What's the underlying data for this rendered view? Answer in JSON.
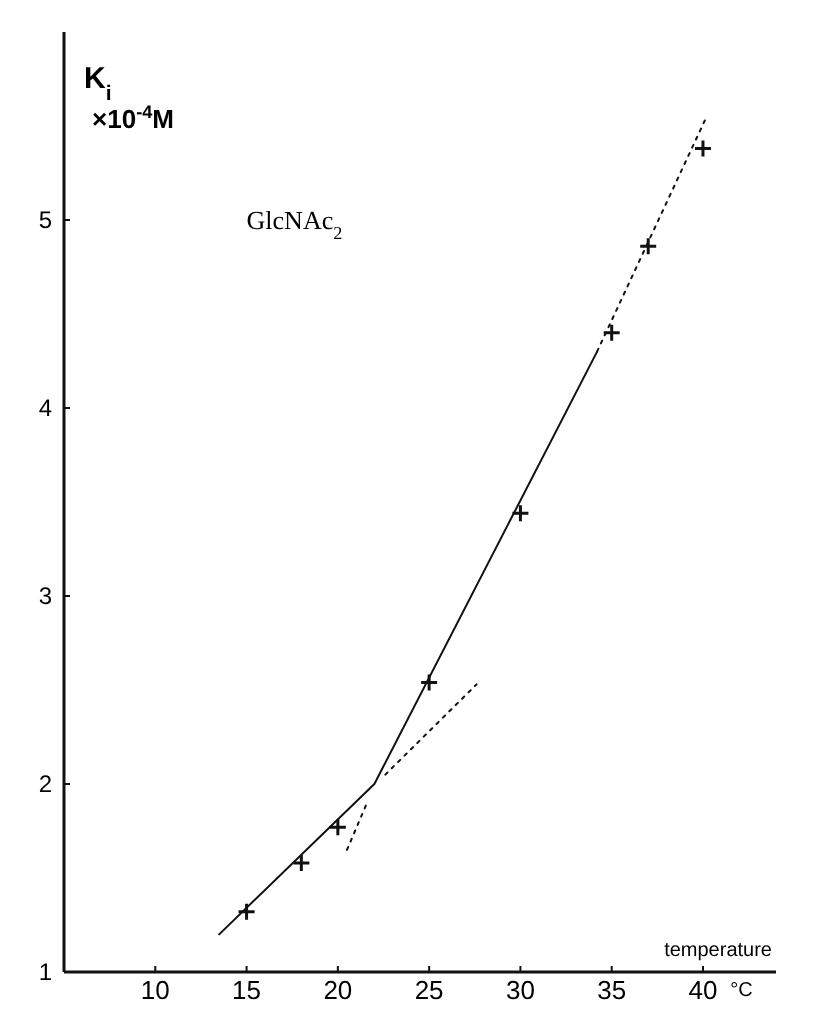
{
  "chart_data": {
    "type": "scatter",
    "ylabel": "K$_{i}$\n×10$^{-4}$M",
    "xlabel": "temperature",
    "annotations": [
      "GlcNAc$_{2}$",
      "°C"
    ],
    "xlim": [
      5,
      44
    ],
    "xticks": [
      10,
      15,
      20,
      25,
      30,
      35,
      40
    ],
    "ylim": [
      1,
      6
    ],
    "yticks": [
      1,
      2,
      3,
      4,
      5
    ],
    "grid": false,
    "series": [
      {
        "type": "scatter",
        "marker": "cross",
        "color": "#111111",
        "x": [
          15,
          18,
          20,
          25,
          30,
          35,
          37,
          40
        ],
        "values": [
          1.32,
          1.58,
          1.77,
          2.54,
          3.44,
          4.4,
          4.86,
          5.38
        ]
      },
      {
        "type": "line",
        "line_style": "solid",
        "marker": "none",
        "color": "#111111",
        "x": [
          13.5,
          22,
          34.2
        ],
        "values": [
          1.2,
          2.0,
          4.3
        ]
      },
      {
        "type": "line",
        "line_style": "dotted",
        "marker": "none",
        "color": "#111111",
        "x": [
          22.6,
          27.6
        ],
        "values": [
          2.05,
          2.53
        ]
      },
      {
        "type": "line",
        "line_style": "dotted",
        "marker": "none",
        "color": "#111111",
        "x": [
          20.5,
          21.6
        ],
        "values": [
          1.65,
          1.9
        ]
      },
      {
        "type": "line",
        "line_style": "dotted",
        "marker": "none",
        "color": "#111111",
        "x": [
          34.2,
          40.2
        ],
        "values": [
          4.3,
          5.55
        ]
      }
    ]
  }
}
